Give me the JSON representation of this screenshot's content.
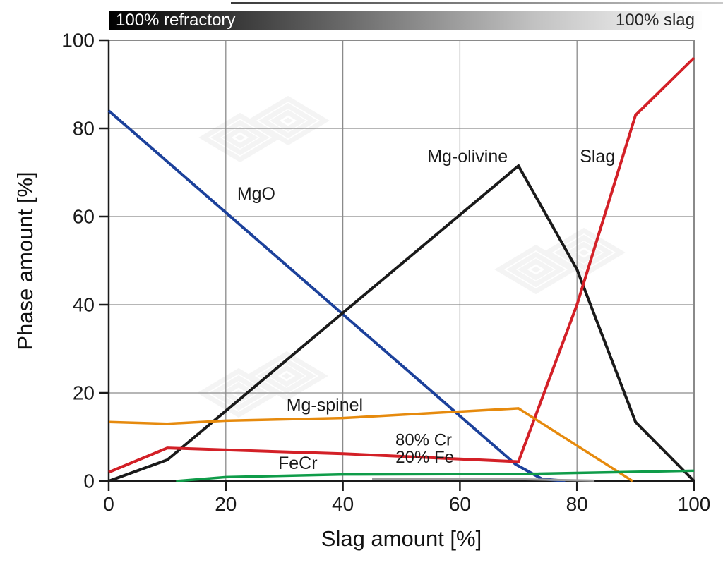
{
  "figure": {
    "background": "#ffffff"
  },
  "gradient_bar": {
    "left_label": "100% refractory",
    "right_label": "100% slag",
    "from_color": "#000000",
    "to_color": "#ffffff"
  },
  "chart_data": {
    "type": "line",
    "title": "",
    "xlabel": "Slag amount [%]",
    "ylabel": "Phase amount [%]",
    "xlim": [
      0,
      100
    ],
    "ylim": [
      0,
      100
    ],
    "xticks": [
      0,
      20,
      40,
      60,
      80,
      100
    ],
    "yticks": [
      0,
      20,
      40,
      60,
      80,
      100
    ],
    "grid": true,
    "legend": "inline-labels",
    "series": [
      {
        "name": "MgO",
        "color": "#1c419b",
        "width": 4,
        "points": [
          [
            0,
            84
          ],
          [
            69.5,
            3.8
          ],
          [
            74,
            0.5
          ],
          [
            78,
            0
          ]
        ],
        "label": {
          "text": "MgO",
          "x": 25.2,
          "y": 65.1
        }
      },
      {
        "name": "Mg-olivine",
        "color": "#1a1a1a",
        "width": 4,
        "points": [
          [
            0,
            0
          ],
          [
            10,
            4.8
          ],
          [
            70,
            71.5
          ],
          [
            80,
            48
          ],
          [
            90,
            13.4
          ],
          [
            100,
            0
          ]
        ],
        "label": {
          "text": "Mg-olivine",
          "x": 61.3,
          "y": 73.6
        }
      },
      {
        "name": "Slag",
        "color": "#d32027",
        "width": 4,
        "points": [
          [
            0,
            2
          ],
          [
            10,
            7.5
          ],
          [
            40,
            6.2
          ],
          [
            70,
            4.4
          ],
          [
            80,
            40
          ],
          [
            90,
            83
          ],
          [
            100,
            96
          ]
        ],
        "label": {
          "text": "Slag",
          "x": 83.5,
          "y": 73.6
        }
      },
      {
        "name": "Mg-spinel",
        "color": "#e68a0d",
        "width": 3.5,
        "points": [
          [
            0,
            13.4
          ],
          [
            10,
            13
          ],
          [
            20,
            13.7
          ],
          [
            40,
            14.3
          ],
          [
            70,
            16.5
          ],
          [
            89.5,
            0
          ]
        ],
        "label": {
          "text": "Mg-spinel",
          "x": 36.9,
          "y": 17.2
        }
      },
      {
        "name": "FeCr",
        "color": "#0f9c49",
        "width": 3.5,
        "points": [
          [
            11.5,
            0
          ],
          [
            20,
            0.9
          ],
          [
            40,
            1.5
          ],
          [
            70,
            1.6
          ],
          [
            100,
            2.35
          ]
        ],
        "label": {
          "text": "FeCr",
          "x": 32.3,
          "y": 4.0
        }
      },
      {
        "name": "metal-composition",
        "color": "#9c9c9c",
        "width": 3,
        "points": [
          [
            45,
            0.4
          ],
          [
            65,
            0.55
          ],
          [
            83,
            0.1
          ]
        ],
        "label": null
      }
    ],
    "annotations": [
      {
        "text": "80% Cr",
        "x": 53.8,
        "y": 9.3,
        "color": "#a8a8a8"
      },
      {
        "text": "20% Fe",
        "x": 54.0,
        "y": 5.4,
        "color": "#a8a8a8"
      }
    ]
  },
  "watermark": {
    "icon": "nested-diamonds-logo",
    "count": 3
  }
}
